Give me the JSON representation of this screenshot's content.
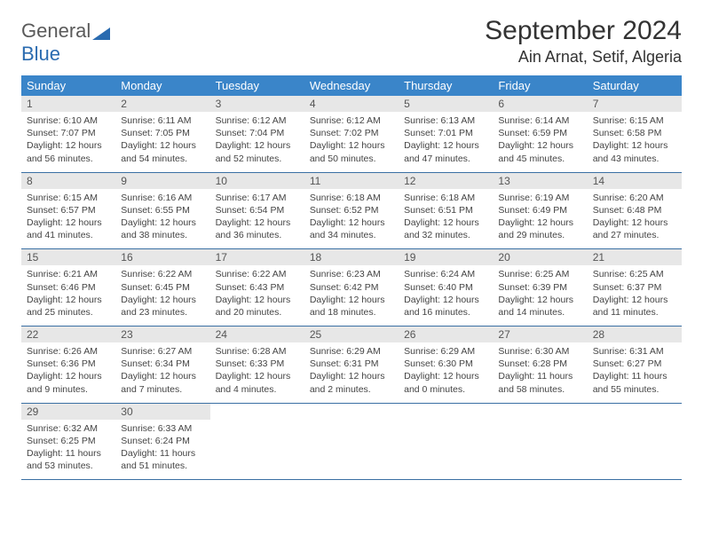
{
  "logo": {
    "line1": "General",
    "line2": "Blue",
    "color": "#2a6bb0",
    "gray": "#5a5a5a"
  },
  "title": "September 2024",
  "location": "Ain Arnat, Setif, Algeria",
  "colors": {
    "header_bg": "#3a85c9",
    "header_text": "#ffffff",
    "daynum_bg": "#e7e7e7",
    "daynum_text": "#555555",
    "body_text": "#444444",
    "divider": "#3a6fa3",
    "page_bg": "#ffffff"
  },
  "layout": {
    "columns": 7,
    "rows": 5,
    "cell_font_size_pt": 8,
    "header_font_size_pt": 10
  },
  "day_names": [
    "Sunday",
    "Monday",
    "Tuesday",
    "Wednesday",
    "Thursday",
    "Friday",
    "Saturday"
  ],
  "weeks": [
    [
      {
        "n": "1",
        "sr": "Sunrise: 6:10 AM",
        "ss": "Sunset: 7:07 PM",
        "d1": "Daylight: 12 hours",
        "d2": "and 56 minutes."
      },
      {
        "n": "2",
        "sr": "Sunrise: 6:11 AM",
        "ss": "Sunset: 7:05 PM",
        "d1": "Daylight: 12 hours",
        "d2": "and 54 minutes."
      },
      {
        "n": "3",
        "sr": "Sunrise: 6:12 AM",
        "ss": "Sunset: 7:04 PM",
        "d1": "Daylight: 12 hours",
        "d2": "and 52 minutes."
      },
      {
        "n": "4",
        "sr": "Sunrise: 6:12 AM",
        "ss": "Sunset: 7:02 PM",
        "d1": "Daylight: 12 hours",
        "d2": "and 50 minutes."
      },
      {
        "n": "5",
        "sr": "Sunrise: 6:13 AM",
        "ss": "Sunset: 7:01 PM",
        "d1": "Daylight: 12 hours",
        "d2": "and 47 minutes."
      },
      {
        "n": "6",
        "sr": "Sunrise: 6:14 AM",
        "ss": "Sunset: 6:59 PM",
        "d1": "Daylight: 12 hours",
        "d2": "and 45 minutes."
      },
      {
        "n": "7",
        "sr": "Sunrise: 6:15 AM",
        "ss": "Sunset: 6:58 PM",
        "d1": "Daylight: 12 hours",
        "d2": "and 43 minutes."
      }
    ],
    [
      {
        "n": "8",
        "sr": "Sunrise: 6:15 AM",
        "ss": "Sunset: 6:57 PM",
        "d1": "Daylight: 12 hours",
        "d2": "and 41 minutes."
      },
      {
        "n": "9",
        "sr": "Sunrise: 6:16 AM",
        "ss": "Sunset: 6:55 PM",
        "d1": "Daylight: 12 hours",
        "d2": "and 38 minutes."
      },
      {
        "n": "10",
        "sr": "Sunrise: 6:17 AM",
        "ss": "Sunset: 6:54 PM",
        "d1": "Daylight: 12 hours",
        "d2": "and 36 minutes."
      },
      {
        "n": "11",
        "sr": "Sunrise: 6:18 AM",
        "ss": "Sunset: 6:52 PM",
        "d1": "Daylight: 12 hours",
        "d2": "and 34 minutes."
      },
      {
        "n": "12",
        "sr": "Sunrise: 6:18 AM",
        "ss": "Sunset: 6:51 PM",
        "d1": "Daylight: 12 hours",
        "d2": "and 32 minutes."
      },
      {
        "n": "13",
        "sr": "Sunrise: 6:19 AM",
        "ss": "Sunset: 6:49 PM",
        "d1": "Daylight: 12 hours",
        "d2": "and 29 minutes."
      },
      {
        "n": "14",
        "sr": "Sunrise: 6:20 AM",
        "ss": "Sunset: 6:48 PM",
        "d1": "Daylight: 12 hours",
        "d2": "and 27 minutes."
      }
    ],
    [
      {
        "n": "15",
        "sr": "Sunrise: 6:21 AM",
        "ss": "Sunset: 6:46 PM",
        "d1": "Daylight: 12 hours",
        "d2": "and 25 minutes."
      },
      {
        "n": "16",
        "sr": "Sunrise: 6:22 AM",
        "ss": "Sunset: 6:45 PM",
        "d1": "Daylight: 12 hours",
        "d2": "and 23 minutes."
      },
      {
        "n": "17",
        "sr": "Sunrise: 6:22 AM",
        "ss": "Sunset: 6:43 PM",
        "d1": "Daylight: 12 hours",
        "d2": "and 20 minutes."
      },
      {
        "n": "18",
        "sr": "Sunrise: 6:23 AM",
        "ss": "Sunset: 6:42 PM",
        "d1": "Daylight: 12 hours",
        "d2": "and 18 minutes."
      },
      {
        "n": "19",
        "sr": "Sunrise: 6:24 AM",
        "ss": "Sunset: 6:40 PM",
        "d1": "Daylight: 12 hours",
        "d2": "and 16 minutes."
      },
      {
        "n": "20",
        "sr": "Sunrise: 6:25 AM",
        "ss": "Sunset: 6:39 PM",
        "d1": "Daylight: 12 hours",
        "d2": "and 14 minutes."
      },
      {
        "n": "21",
        "sr": "Sunrise: 6:25 AM",
        "ss": "Sunset: 6:37 PM",
        "d1": "Daylight: 12 hours",
        "d2": "and 11 minutes."
      }
    ],
    [
      {
        "n": "22",
        "sr": "Sunrise: 6:26 AM",
        "ss": "Sunset: 6:36 PM",
        "d1": "Daylight: 12 hours",
        "d2": "and 9 minutes."
      },
      {
        "n": "23",
        "sr": "Sunrise: 6:27 AM",
        "ss": "Sunset: 6:34 PM",
        "d1": "Daylight: 12 hours",
        "d2": "and 7 minutes."
      },
      {
        "n": "24",
        "sr": "Sunrise: 6:28 AM",
        "ss": "Sunset: 6:33 PM",
        "d1": "Daylight: 12 hours",
        "d2": "and 4 minutes."
      },
      {
        "n": "25",
        "sr": "Sunrise: 6:29 AM",
        "ss": "Sunset: 6:31 PM",
        "d1": "Daylight: 12 hours",
        "d2": "and 2 minutes."
      },
      {
        "n": "26",
        "sr": "Sunrise: 6:29 AM",
        "ss": "Sunset: 6:30 PM",
        "d1": "Daylight: 12 hours",
        "d2": "and 0 minutes."
      },
      {
        "n": "27",
        "sr": "Sunrise: 6:30 AM",
        "ss": "Sunset: 6:28 PM",
        "d1": "Daylight: 11 hours",
        "d2": "and 58 minutes."
      },
      {
        "n": "28",
        "sr": "Sunrise: 6:31 AM",
        "ss": "Sunset: 6:27 PM",
        "d1": "Daylight: 11 hours",
        "d2": "and 55 minutes."
      }
    ],
    [
      {
        "n": "29",
        "sr": "Sunrise: 6:32 AM",
        "ss": "Sunset: 6:25 PM",
        "d1": "Daylight: 11 hours",
        "d2": "and 53 minutes."
      },
      {
        "n": "30",
        "sr": "Sunrise: 6:33 AM",
        "ss": "Sunset: 6:24 PM",
        "d1": "Daylight: 11 hours",
        "d2": "and 51 minutes."
      },
      {
        "empty": true
      },
      {
        "empty": true
      },
      {
        "empty": true
      },
      {
        "empty": true
      },
      {
        "empty": true
      }
    ]
  ]
}
